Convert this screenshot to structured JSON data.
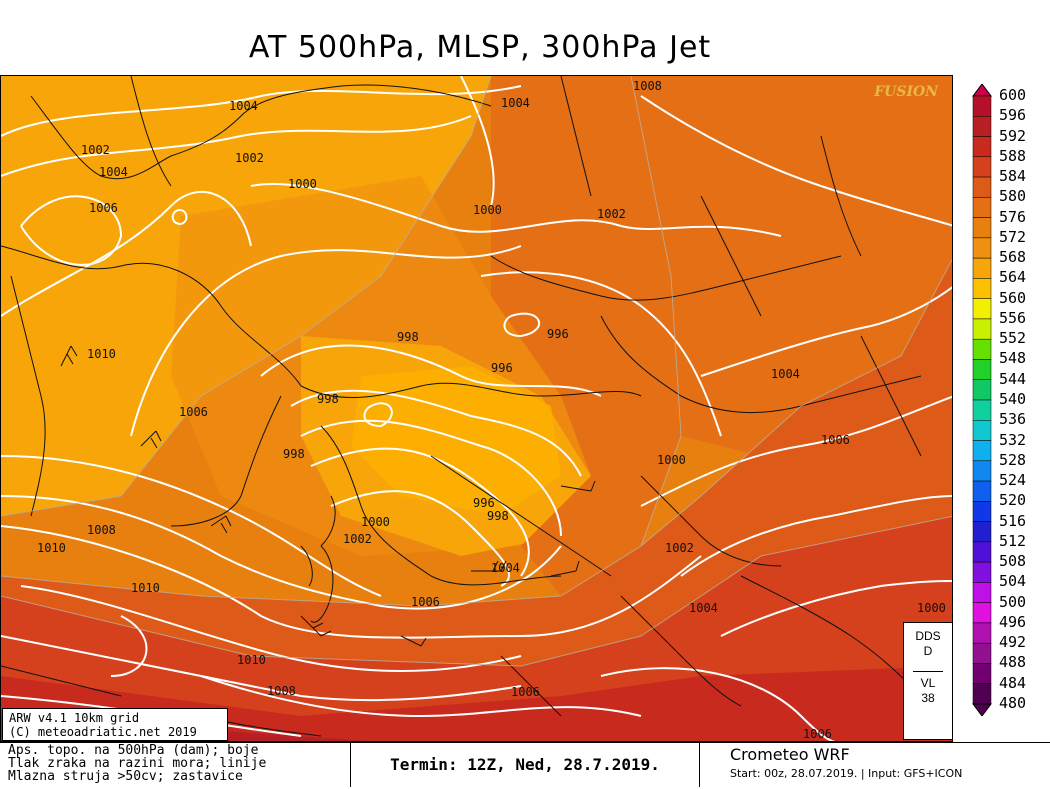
{
  "title": "AT 500hPa, MLSP, 300hPa Jet",
  "watermark": "FUSION",
  "colorbar": {
    "levels": [
      "600",
      "596",
      "592",
      "588",
      "584",
      "580",
      "576",
      "572",
      "568",
      "564",
      "560",
      "556",
      "552",
      "548",
      "544",
      "540",
      "536",
      "532",
      "528",
      "524",
      "520",
      "516",
      "512",
      "508",
      "504",
      "500",
      "496",
      "492",
      "488",
      "484",
      "480"
    ],
    "colors": [
      "#c8004a",
      "#b5102a",
      "#b81f24",
      "#c82a1e",
      "#d5411c",
      "#de5a18",
      "#e46f14",
      "#e88010",
      "#f09010",
      "#f7a508",
      "#fcc000",
      "#f2f000",
      "#c8f000",
      "#66e000",
      "#22d02a",
      "#10c864",
      "#10d0a0",
      "#10c8d0",
      "#10b0f0",
      "#1088f0",
      "#1060f0",
      "#1038e8",
      "#2020d0",
      "#5010d8",
      "#8010e0",
      "#c010e8",
      "#e010e0",
      "#b010b0",
      "#901090",
      "#700070",
      "#500050"
    ]
  },
  "map": {
    "pressure_labels": [
      "1004",
      "1002",
      "1004",
      "1006",
      "1002",
      "1000",
      "1008",
      "1004",
      "1000",
      "1002",
      "1010",
      "1006",
      "998",
      "998",
      "996",
      "996",
      "1004",
      "998",
      "1006",
      "1000",
      "996",
      "998",
      "1000",
      "1002",
      "1008",
      "1010",
      "1010",
      "1004",
      "1006",
      "1002",
      "1004",
      "1010",
      "1008",
      "1006",
      "1000",
      "1006"
    ]
  },
  "dds_box": {
    "line1": "DDS",
    "line2": "D",
    "line3": "VL",
    "line4": "38"
  },
  "info_box": {
    "line1": "ARW v4.1 10km grid",
    "line2": "(C) meteoadriatic.net 2019"
  },
  "footer": {
    "desc_line1": "Aps. topo. na 500hPa (dam); boje",
    "desc_line2": "Tlak zraka na razini mora; linije",
    "desc_line3": "Mlazna struja >50cv; zastavice",
    "termin": "Termin: 12Z, Ned, 28.7.2019.",
    "model": "Crometeo WRF",
    "start": "Start: 00z, 28.07.2019. | Input: GFS+ICON"
  }
}
